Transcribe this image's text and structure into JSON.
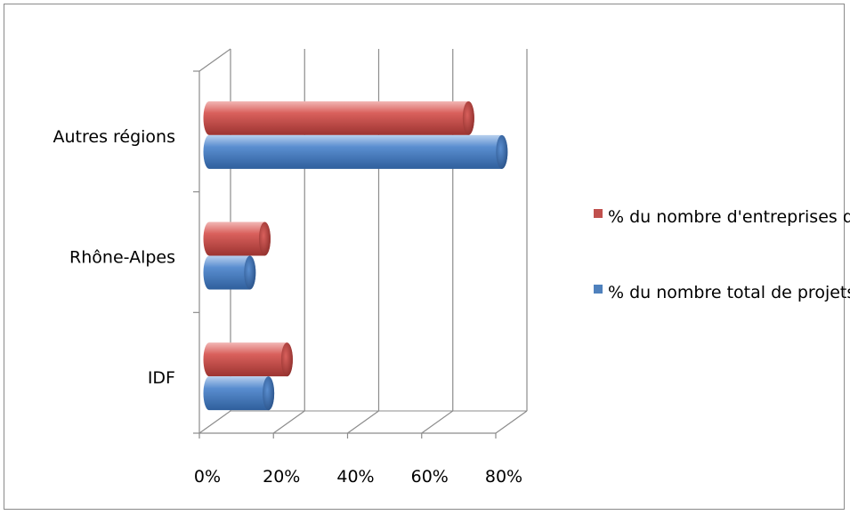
{
  "chart_data": {
    "type": "bar",
    "orientation": "horizontal",
    "style": "3d-cylinder",
    "categories": [
      "Autres régions",
      "Rhône-Alpes",
      "IDF"
    ],
    "series": [
      {
        "name": "% du nombre d'entreprises de la base",
        "color": "#c0504d",
        "values": [
          70,
          15,
          21
        ]
      },
      {
        "name": "% du nombre total de projets",
        "color": "#4f81bd",
        "values": [
          79,
          11,
          16
        ]
      }
    ],
    "xlim": [
      0,
      80
    ],
    "x_ticks": [
      "0%",
      "20%",
      "40%",
      "60%",
      "80%"
    ],
    "grid": "vertical",
    "legend_position": "right",
    "title": "",
    "xlabel": "",
    "ylabel": ""
  }
}
